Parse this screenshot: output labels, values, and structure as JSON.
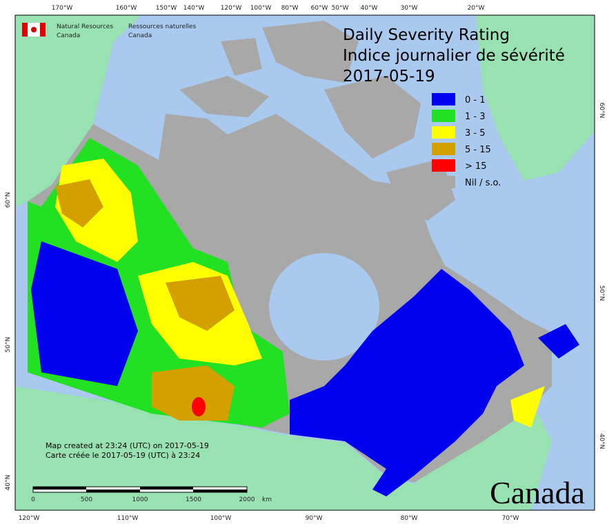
{
  "agency": {
    "en": "Natural Resources",
    "en2": "Canada",
    "fr": "Ressources naturelles",
    "fr2": "Canada"
  },
  "title": {
    "line1": "Daily Severity Rating",
    "line2": "Indice journalier de sévérité",
    "date": "2017-05-19"
  },
  "legend": [
    {
      "label": "0 - 1",
      "color": "#0000ee"
    },
    {
      "label": "1 - 3",
      "color": "#22e022"
    },
    {
      "label": "3 - 5",
      "color": "#ffff00"
    },
    {
      "label": "5 - 15",
      "color": "#d4a000"
    },
    {
      "label": "> 15",
      "color": "#ff0000"
    },
    {
      "label": "Nil / s.o.",
      "color": "#a8a8a8"
    }
  ],
  "graticule": {
    "top": [
      "170°W",
      "160°W",
      "150°W",
      "140°W",
      "120°W",
      "100°W",
      "80°W",
      "60°W",
      "50°W",
      "40°W",
      "30°W",
      "20°W"
    ],
    "bottom": [
      "120°W",
      "110°W",
      "100°W",
      "90°W",
      "80°W",
      "70°W"
    ],
    "left": [
      "60°N",
      "50°N",
      "40°N"
    ],
    "right": [
      "60°N",
      "50°N",
      "40°N"
    ]
  },
  "notes": [
    "Map created at 23:24 (UTC) on 2017-05-19",
    "Carte créée le 2017-05-19 (UTC) à 23:24"
  ],
  "scale": {
    "ticks": [
      "0",
      "500",
      "1000",
      "1500",
      "2000"
    ],
    "unit": "km"
  },
  "wordmark": "Canada"
}
